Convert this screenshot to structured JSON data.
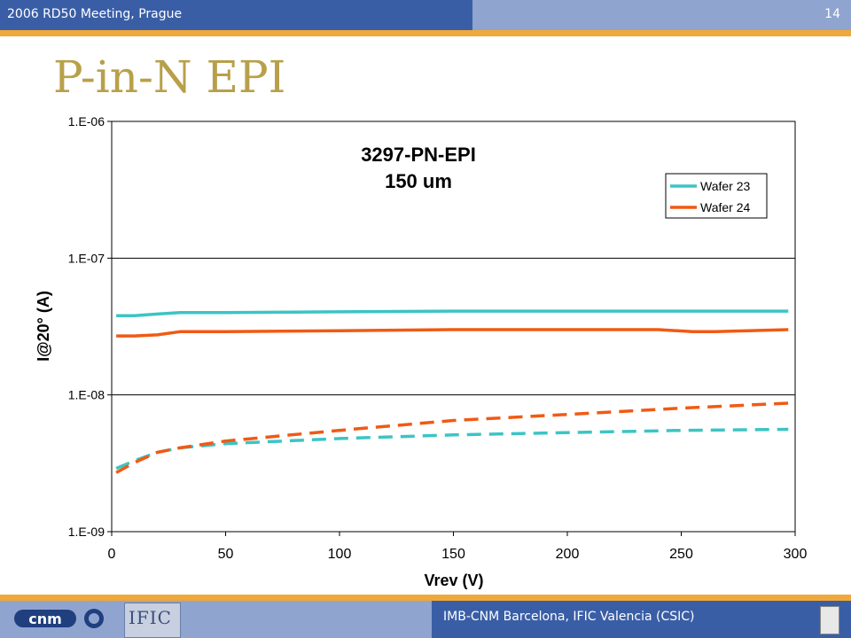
{
  "header": {
    "meeting": "2006 RD50 Meeting, Prague",
    "page_number": "14"
  },
  "slide_title": "P-in-N EPI",
  "footer": {
    "institutions": "IMB-CNM Barcelona, IFIC Valencia (CSIC)",
    "logo_left": "cnm",
    "logo_mid": "IFIC"
  },
  "colors": {
    "header_dark": "#3a5ea6",
    "header_light": "#8fa4cf",
    "accent_orange": "#f0a83a",
    "title": "#b8a04a",
    "cyan": "#3cc4c4",
    "orange": "#f05a14"
  },
  "chart_data": {
    "type": "line",
    "title": "3297-PN-EPI",
    "subtitle": "150 um",
    "xlabel": "Vrev (V)",
    "ylabel": "I@20° (A)",
    "xlim": [
      0,
      300
    ],
    "ylim": [
      1e-09,
      1e-06
    ],
    "yscale": "log",
    "x_ticks": [
      "0",
      "50",
      "100",
      "150",
      "200",
      "250",
      "300"
    ],
    "y_ticks": [
      "1.E-06",
      "1.E-07",
      "1.E-08",
      "1.E-09"
    ],
    "grid": "horizontal",
    "legend": {
      "position": "top-right",
      "entries": [
        "Wafer 23",
        "Wafer 24"
      ]
    },
    "series": [
      {
        "name": "Wafer 23",
        "color": "#3cc4c4",
        "dash": false,
        "x": [
          2,
          10,
          20,
          30,
          50,
          100,
          150,
          200,
          250,
          297
        ],
        "y": [
          3.8e-08,
          3.8e-08,
          3.9e-08,
          4e-08,
          4e-08,
          4.05e-08,
          4.1e-08,
          4.1e-08,
          4.1e-08,
          4.1e-08
        ]
      },
      {
        "name": "Wafer 24",
        "color": "#f05a14",
        "dash": false,
        "x": [
          2,
          10,
          20,
          30,
          50,
          100,
          150,
          200,
          240,
          255,
          265,
          297
        ],
        "y": [
          2.7e-08,
          2.7e-08,
          2.75e-08,
          2.9e-08,
          2.9e-08,
          2.95e-08,
          3e-08,
          3e-08,
          3e-08,
          2.9e-08,
          2.9e-08,
          3e-08
        ]
      },
      {
        "color": "#3cc4c4",
        "dash": true,
        "x": [
          2,
          10,
          20,
          30,
          50,
          100,
          150,
          200,
          250,
          297
        ],
        "y": [
          2.9e-09,
          3.3e-09,
          3.8e-09,
          4.1e-09,
          4.4e-09,
          4.8e-09,
          5.1e-09,
          5.3e-09,
          5.5e-09,
          5.6e-09
        ]
      },
      {
        "color": "#f05a14",
        "dash": true,
        "x": [
          2,
          10,
          20,
          30,
          50,
          100,
          150,
          200,
          250,
          297
        ],
        "y": [
          2.7e-09,
          3.2e-09,
          3.8e-09,
          4.1e-09,
          4.6e-09,
          5.5e-09,
          6.5e-09,
          7.2e-09,
          8e-09,
          8.7e-09
        ]
      }
    ]
  }
}
